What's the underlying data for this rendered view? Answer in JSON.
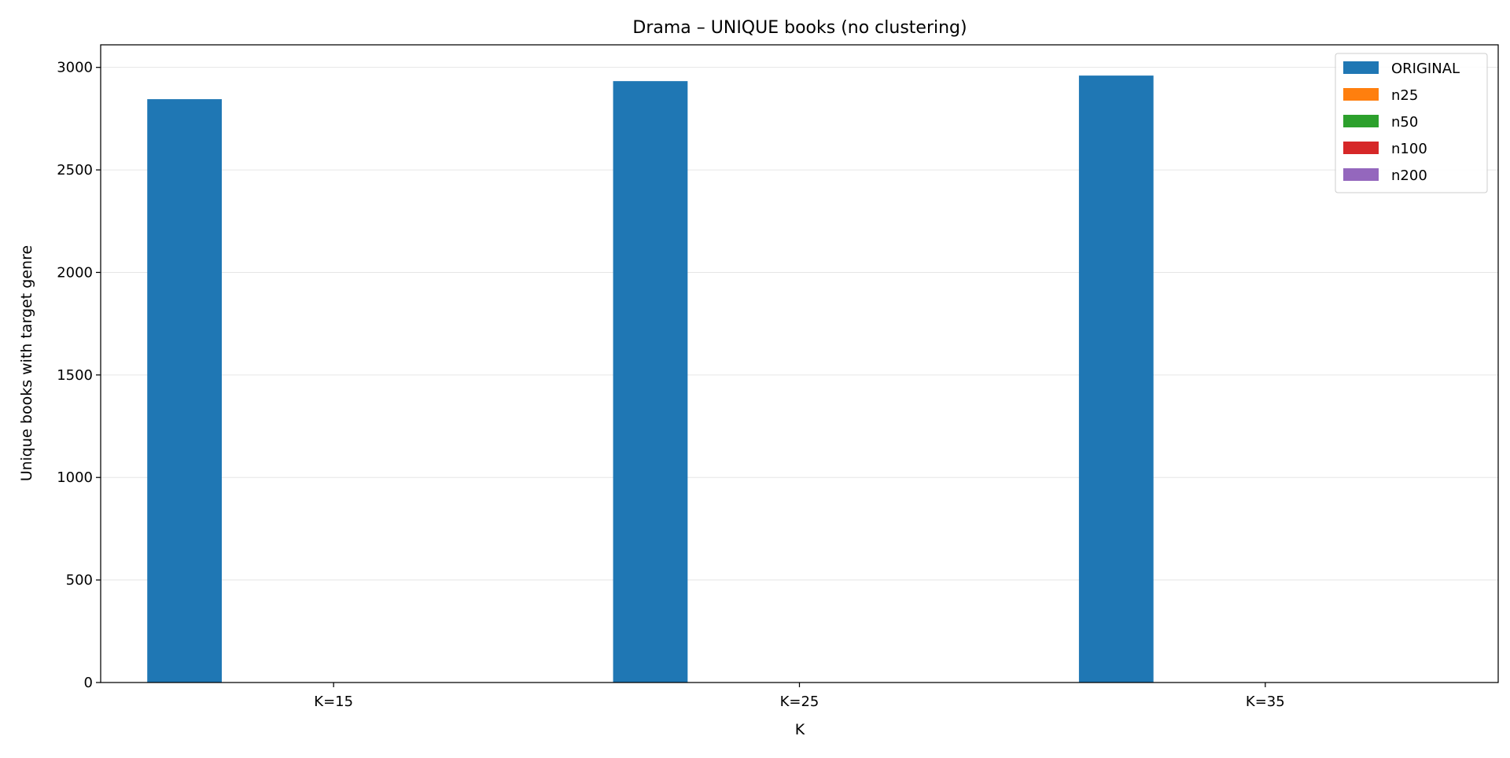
{
  "chart_data": {
    "type": "bar",
    "title": "Drama – UNIQUE books (no clustering)",
    "xlabel": "K",
    "ylabel": "Unique books with target genre",
    "categories": [
      "K=15",
      "K=25",
      "K=35"
    ],
    "ylim": [
      0,
      3110
    ],
    "yticks": [
      0,
      500,
      1000,
      1500,
      2000,
      2500,
      3000
    ],
    "grid": "y-major",
    "legend_position": "upper-right",
    "series": [
      {
        "name": "ORIGINAL",
        "color": "#1f77b4",
        "values": [
          2845,
          2933,
          2960
        ]
      },
      {
        "name": "n25",
        "color": "#ff7f0e",
        "values": [
          0,
          0,
          0
        ]
      },
      {
        "name": "n50",
        "color": "#2ca02c",
        "values": [
          0,
          0,
          0
        ]
      },
      {
        "name": "n100",
        "color": "#d62728",
        "values": [
          0,
          0,
          0
        ]
      },
      {
        "name": "n200",
        "color": "#9467bd",
        "values": [
          0,
          0,
          0
        ]
      }
    ]
  }
}
